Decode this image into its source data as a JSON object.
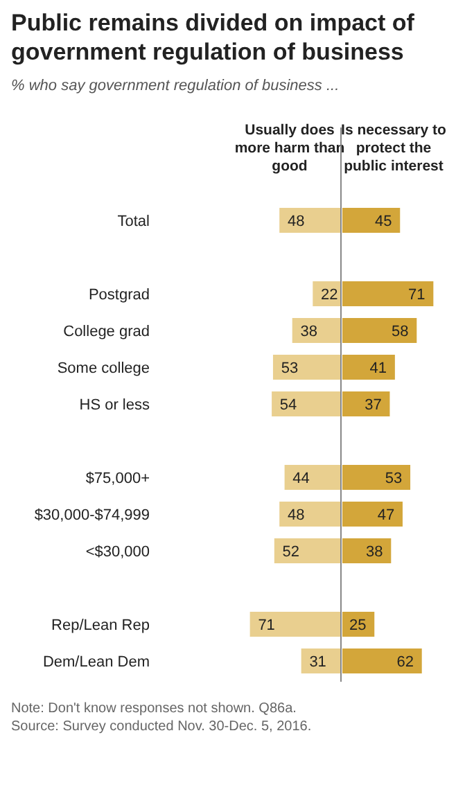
{
  "chart_data": [
    {
      "type": "bar",
      "orientation": "horizontal",
      "title": "Public remains divided on impact of government regulation of business",
      "subtitle": "% who say government regulation of business ...",
      "categories": [
        "Total",
        null,
        "Postgrad",
        "College grad",
        "Some college",
        "HS or less",
        null,
        "$75,000+",
        "$30,000-$74,999",
        "<$30,000",
        null,
        "Rep/Lean Rep",
        "Dem/Lean Dem"
      ],
      "data_labels": true,
      "series": [
        {
          "name": "Usually does more harm than good",
          "color": "#e9cf8f",
          "values": [
            48,
            null,
            22,
            38,
            53,
            54,
            null,
            44,
            48,
            52,
            null,
            71,
            31
          ]
        }
      ],
      "annotations": [
        "Note: Don't know responses not shown. Q86a.",
        "Source: Survey conducted Nov. 30-Dec. 5, 2016."
      ]
    },
    {
      "type": "bar",
      "orientation": "horizontal",
      "categories": [
        null,
        null,
        null,
        null,
        null,
        null,
        null,
        null,
        null,
        null,
        null,
        null,
        null
      ],
      "data_labels": true,
      "series": [
        {
          "name": "Is necessary to protect the public interest",
          "color": "#d3a63a",
          "values": [
            45,
            null,
            71,
            58,
            41,
            37,
            null,
            53,
            47,
            38,
            null,
            25,
            62
          ]
        }
      ]
    }
  ]
}
